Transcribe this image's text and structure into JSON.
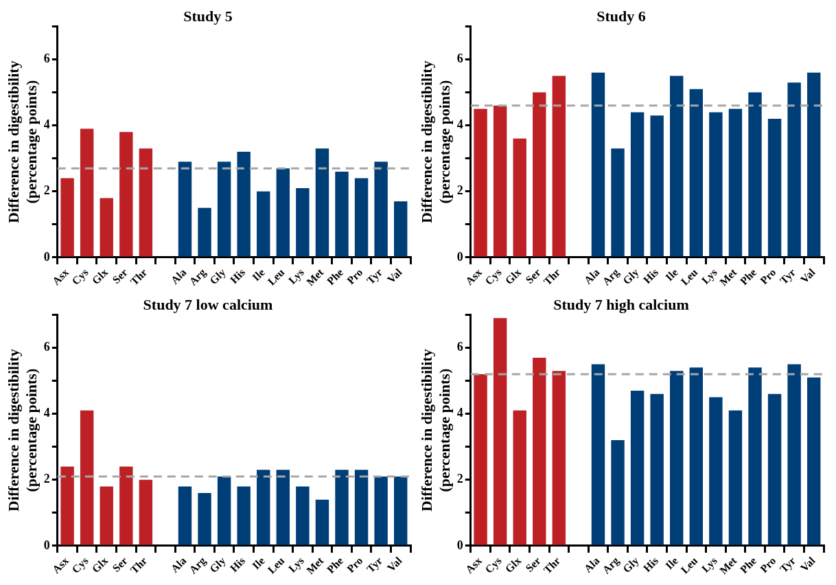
{
  "chart_data": [
    {
      "type": "bar",
      "title": "Study 5",
      "ylabel": "Difference in digestibility (percentage points)",
      "categories": [
        "Asx",
        "Cys",
        "Glx",
        "Ser",
        "Thr",
        null,
        "Ala",
        "Arg",
        "Gly",
        "His",
        "Ile",
        "Leu",
        "Lys",
        "Met",
        "Phe",
        "Pro",
        "Tyr",
        "Val"
      ],
      "values": [
        2.4,
        3.9,
        1.8,
        3.8,
        3.3,
        null,
        2.9,
        1.5,
        2.9,
        3.2,
        2.0,
        2.7,
        2.1,
        3.3,
        2.6,
        2.4,
        2.9,
        1.7
      ],
      "colors": [
        "#bd2126",
        "#bd2126",
        "#bd2126",
        "#bd2126",
        "#bd2126",
        "#ffffff",
        "#003e78",
        "#003e78",
        "#003e78",
        "#003e78",
        "#003e78",
        "#003e78",
        "#003e78",
        "#003e78",
        "#003e78",
        "#003e78",
        "#003e78",
        "#003e78"
      ],
      "ylim": [
        0,
        7
      ],
      "yticks": [
        0,
        {
          "value": 1,
          "label": null
        },
        2,
        {
          "value": 3,
          "label": null
        },
        4,
        {
          "value": 5,
          "label": null
        },
        6,
        {
          "value": 7,
          "label": null
        }
      ],
      "ref_lines": [
        {
          "axis": "y",
          "value": 2.7,
          "color": "#a6a6a6",
          "line_style": "dashed"
        }
      ],
      "grid": false,
      "legend": false
    },
    {
      "type": "bar",
      "title": "Study 6",
      "ylabel": "Difference in digestibility (percentage points)",
      "categories": [
        "Asx",
        "Cys",
        "Glx",
        "Ser",
        "Thr",
        null,
        "Ala",
        "Arg",
        "Gly",
        "His",
        "Ile",
        "Leu",
        "Lys",
        "Met",
        "Phe",
        "Pro",
        "Tyr",
        "Val"
      ],
      "values": [
        4.5,
        4.6,
        3.6,
        5.0,
        5.5,
        null,
        5.6,
        3.3,
        4.4,
        4.3,
        5.5,
        5.1,
        4.4,
        4.5,
        5.0,
        4.2,
        5.3,
        5.6
      ],
      "colors": [
        "#bd2126",
        "#bd2126",
        "#bd2126",
        "#bd2126",
        "#bd2126",
        "#ffffff",
        "#003e78",
        "#003e78",
        "#003e78",
        "#003e78",
        "#003e78",
        "#003e78",
        "#003e78",
        "#003e78",
        "#003e78",
        "#003e78",
        "#003e78",
        "#003e78"
      ],
      "ylim": [
        0,
        7
      ],
      "yticks": [
        0,
        {
          "value": 1,
          "label": null
        },
        2,
        {
          "value": 3,
          "label": null
        },
        4,
        {
          "value": 5,
          "label": null
        },
        6,
        {
          "value": 7,
          "label": null
        }
      ],
      "ref_lines": [
        {
          "axis": "y",
          "value": 4.6,
          "color": "#a6a6a6",
          "line_style": "dashed"
        }
      ],
      "grid": false,
      "legend": false
    },
    {
      "type": "bar",
      "title": "Study 7 low calcium",
      "ylabel": "Difference in digestibility (percentage points)",
      "categories": [
        "Asx",
        "Cys",
        "Glx",
        "Ser",
        "Thr",
        null,
        "Ala",
        "Arg",
        "Gly",
        "His",
        "Ile",
        "Leu",
        "Lys",
        "Met",
        "Phe",
        "Pro",
        "Tyr",
        "Val"
      ],
      "values": [
        2.4,
        4.1,
        1.8,
        2.4,
        2.0,
        null,
        1.8,
        1.6,
        2.1,
        1.8,
        2.3,
        2.3,
        1.8,
        1.4,
        2.3,
        2.3,
        2.1,
        2.1
      ],
      "colors": [
        "#bd2126",
        "#bd2126",
        "#bd2126",
        "#bd2126",
        "#bd2126",
        "#ffffff",
        "#003e78",
        "#003e78",
        "#003e78",
        "#003e78",
        "#003e78",
        "#003e78",
        "#003e78",
        "#003e78",
        "#003e78",
        "#003e78",
        "#003e78",
        "#003e78"
      ],
      "ylim": [
        0,
        7
      ],
      "yticks": [
        0,
        {
          "value": 1,
          "label": null
        },
        2,
        {
          "value": 3,
          "label": null
        },
        4,
        {
          "value": 5,
          "label": null
        },
        6,
        {
          "value": 7,
          "label": null
        }
      ],
      "ref_lines": [
        {
          "axis": "y",
          "value": 2.1,
          "color": "#a6a6a6",
          "line_style": "dashed"
        }
      ],
      "grid": false,
      "legend": false
    },
    {
      "type": "bar",
      "title": "Study 7 high calcium",
      "ylabel": "Difference in digestibility (percentage points)",
      "categories": [
        "Asx",
        "Cys",
        "Glx",
        "Ser",
        "Thr",
        null,
        "Ala",
        "Arg",
        "Gly",
        "His",
        "Ile",
        "Leu",
        "Lys",
        "Met",
        "Phe",
        "Pro",
        "Tyr",
        "Val"
      ],
      "values": [
        5.2,
        6.9,
        4.1,
        5.7,
        5.3,
        null,
        5.5,
        3.2,
        4.7,
        4.6,
        5.3,
        5.4,
        4.5,
        4.1,
        5.4,
        4.6,
        5.5,
        5.1
      ],
      "colors": [
        "#bd2126",
        "#bd2126",
        "#bd2126",
        "#bd2126",
        "#bd2126",
        "#ffffff",
        "#003e78",
        "#003e78",
        "#003e78",
        "#003e78",
        "#003e78",
        "#003e78",
        "#003e78",
        "#003e78",
        "#003e78",
        "#003e78",
        "#003e78",
        "#003e78"
      ],
      "ylim": [
        0,
        7
      ],
      "yticks": [
        0,
        {
          "value": 1,
          "label": null
        },
        2,
        {
          "value": 3,
          "label": null
        },
        4,
        {
          "value": 5,
          "label": null
        },
        6,
        {
          "value": 7,
          "label": null
        }
      ],
      "ref_lines": [
        {
          "axis": "y",
          "value": 5.2,
          "color": "#a6a6a6",
          "line_style": "dashed"
        }
      ],
      "grid": false,
      "legend": false
    }
  ]
}
